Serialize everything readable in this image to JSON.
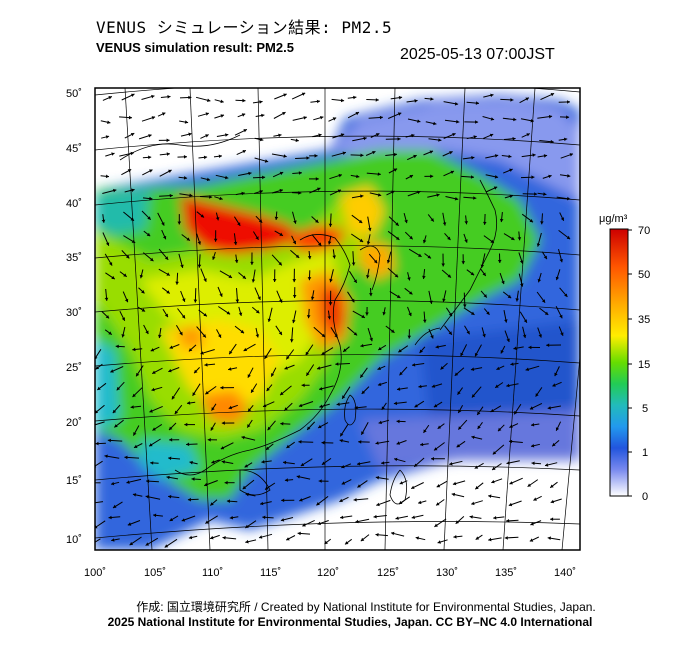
{
  "header": {
    "title_jp": "VENUS シミュレーション結果: PM2.5",
    "title_en": "VENUS simulation result: PM2.5",
    "timestamp": "2025-05-13 07:00JST"
  },
  "map": {
    "lat_ticks": [
      "50˚",
      "45˚",
      "40˚",
      "35˚",
      "30˚",
      "25˚",
      "20˚",
      "15˚",
      "10˚"
    ],
    "lon_ticks": [
      "100˚",
      "105˚",
      "110˚",
      "115˚",
      "120˚",
      "125˚",
      "130˚",
      "135˚",
      "140˚"
    ],
    "lat_range": [
      9,
      51
    ],
    "lon_range": [
      100,
      141
    ]
  },
  "colorbar": {
    "unit": "μg/m³",
    "levels": [
      "70",
      "50",
      "35",
      "15",
      "5",
      "1",
      "0"
    ],
    "colors": [
      "#cc0000",
      "#ff4400",
      "#ffaa00",
      "#ffee00",
      "#88dd00",
      "#22cc44",
      "#22bbaa",
      "#2299ee",
      "#2255dd",
      "#6677ee",
      "#c8ccf5",
      "#ffffff"
    ]
  },
  "footer": {
    "credit_jp": "作成: 国立環境研究所 / Created by National Institute for Environmental Studies, Japan.",
    "credit_en": "2025 National Institute for Environmental Studies, Japan. CC BY–NC 4.0 International"
  }
}
